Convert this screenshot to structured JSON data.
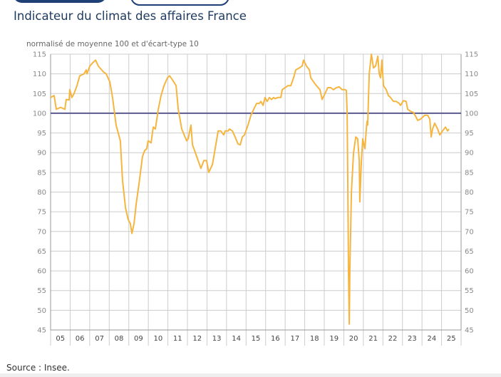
{
  "title": "Indicateur du climat des affaires France",
  "source": "Source : Insee.",
  "chart_data": {
    "type": "line",
    "subtitle": "normalisé de moyenne 100 et d'écart-type 10",
    "xlim": [
      2005,
      2026
    ],
    "ylim": [
      45,
      115
    ],
    "yticks": [
      45,
      50,
      55,
      60,
      65,
      70,
      75,
      80,
      85,
      90,
      95,
      100,
      105,
      110,
      115
    ],
    "xtick_labels": [
      "05",
      "06",
      "07",
      "08",
      "09",
      "10",
      "11",
      "12",
      "13",
      "14",
      "15",
      "16",
      "17",
      "18",
      "19",
      "20",
      "21",
      "22",
      "23",
      "24",
      "25"
    ],
    "reference_line": 100,
    "grid": true,
    "colors": {
      "series": "#f5b53f",
      "reference": "#5b5a8e",
      "grid": "#cccccc"
    },
    "series": [
      {
        "points": [
          [
            2005.0,
            104
          ],
          [
            2005.18,
            104.5
          ],
          [
            2005.29,
            101
          ],
          [
            2005.51,
            101.5
          ],
          [
            2005.73,
            101
          ],
          [
            2005.8,
            103.5
          ],
          [
            2005.95,
            103.4
          ],
          [
            2005.98,
            106
          ],
          [
            2006.09,
            104
          ],
          [
            2006.2,
            105
          ],
          [
            2006.35,
            107
          ],
          [
            2006.49,
            109.5
          ],
          [
            2006.71,
            110
          ],
          [
            2006.82,
            111
          ],
          [
            2006.86,
            110
          ],
          [
            2007.01,
            112
          ],
          [
            2007.19,
            113
          ],
          [
            2007.3,
            113.5
          ],
          [
            2007.44,
            112
          ],
          [
            2007.7,
            110.5
          ],
          [
            2007.84,
            110
          ],
          [
            2008.03,
            108
          ],
          [
            2008.17,
            104
          ],
          [
            2008.35,
            97
          ],
          [
            2008.46,
            95
          ],
          [
            2008.57,
            93
          ],
          [
            2008.68,
            83
          ],
          [
            2008.83,
            76
          ],
          [
            2008.97,
            73
          ],
          [
            2009.08,
            72
          ],
          [
            2009.16,
            69.5
          ],
          [
            2009.27,
            72
          ],
          [
            2009.38,
            77
          ],
          [
            2009.52,
            82
          ],
          [
            2009.7,
            89
          ],
          [
            2009.81,
            90.5
          ],
          [
            2009.92,
            91
          ],
          [
            2009.99,
            93
          ],
          [
            2010.14,
            92.5
          ],
          [
            2010.25,
            96.5
          ],
          [
            2010.36,
            96
          ],
          [
            2010.51,
            101
          ],
          [
            2010.65,
            104.5
          ],
          [
            2010.8,
            107
          ],
          [
            2010.98,
            109
          ],
          [
            2011.09,
            109.5
          ],
          [
            2011.23,
            108.5
          ],
          [
            2011.42,
            107
          ],
          [
            2011.53,
            101
          ],
          [
            2011.71,
            96
          ],
          [
            2011.96,
            93
          ],
          [
            2012.04,
            93.5
          ],
          [
            2012.18,
            97
          ],
          [
            2012.26,
            92
          ],
          [
            2012.44,
            89.5
          ],
          [
            2012.62,
            87
          ],
          [
            2012.69,
            86
          ],
          [
            2012.84,
            88
          ],
          [
            2012.98,
            88
          ],
          [
            2013.09,
            85
          ],
          [
            2013.28,
            87
          ],
          [
            2013.42,
            91
          ],
          [
            2013.57,
            95.5
          ],
          [
            2013.71,
            95.5
          ],
          [
            2013.86,
            94.5
          ],
          [
            2013.93,
            95.5
          ],
          [
            2014.08,
            95.5
          ],
          [
            2014.15,
            96
          ],
          [
            2014.3,
            95.5
          ],
          [
            2014.44,
            94
          ],
          [
            2014.59,
            92.2
          ],
          [
            2014.7,
            92
          ],
          [
            2014.81,
            94
          ],
          [
            2014.92,
            94.5
          ],
          [
            2015.1,
            97
          ],
          [
            2015.25,
            99.5
          ],
          [
            2015.39,
            101
          ],
          [
            2015.54,
            102.5
          ],
          [
            2015.68,
            102.5
          ],
          [
            2015.76,
            103
          ],
          [
            2015.87,
            102
          ],
          [
            2015.97,
            104
          ],
          [
            2016.08,
            103
          ],
          [
            2016.19,
            104
          ],
          [
            2016.3,
            103.5
          ],
          [
            2016.41,
            104
          ],
          [
            2016.48,
            103.7
          ],
          [
            2016.63,
            104
          ],
          [
            2016.78,
            104
          ],
          [
            2016.85,
            106
          ],
          [
            2017.0,
            106.5
          ],
          [
            2017.14,
            107
          ],
          [
            2017.29,
            107
          ],
          [
            2017.43,
            109
          ],
          [
            2017.54,
            111
          ],
          [
            2017.72,
            111.5
          ],
          [
            2017.87,
            112
          ],
          [
            2017.94,
            113.5
          ],
          [
            2018.09,
            112
          ],
          [
            2018.24,
            111
          ],
          [
            2018.31,
            109
          ],
          [
            2018.45,
            108
          ],
          [
            2018.6,
            107
          ],
          [
            2018.78,
            106
          ],
          [
            2018.89,
            103.5
          ],
          [
            2019.04,
            105
          ],
          [
            2019.18,
            106.5
          ],
          [
            2019.33,
            106.5
          ],
          [
            2019.47,
            106
          ],
          [
            2019.62,
            106.5
          ],
          [
            2019.77,
            106.7
          ],
          [
            2019.91,
            106
          ],
          [
            2020.06,
            106
          ],
          [
            2020.13,
            105.8
          ],
          [
            2020.17,
            100
          ],
          [
            2020.2,
            85
          ],
          [
            2020.24,
            60
          ],
          [
            2020.28,
            46.5
          ],
          [
            2020.31,
            60
          ],
          [
            2020.39,
            80
          ],
          [
            2020.5,
            90
          ],
          [
            2020.61,
            94
          ],
          [
            2020.71,
            93.5
          ],
          [
            2020.79,
            88
          ],
          [
            2020.82,
            77.5
          ],
          [
            2020.9,
            88
          ],
          [
            2020.97,
            93.5
          ],
          [
            2021.08,
            91
          ],
          [
            2021.15,
            96
          ],
          [
            2021.19,
            98
          ],
          [
            2021.22,
            97
          ],
          [
            2021.3,
            110
          ],
          [
            2021.41,
            115
          ],
          [
            2021.52,
            111.5
          ],
          [
            2021.63,
            112
          ],
          [
            2021.74,
            114.5
          ],
          [
            2021.81,
            110
          ],
          [
            2021.88,
            109
          ],
          [
            2021.95,
            113.5
          ],
          [
            2022.03,
            107
          ],
          [
            2022.17,
            106
          ],
          [
            2022.28,
            104.5
          ],
          [
            2022.39,
            104
          ],
          [
            2022.54,
            103
          ],
          [
            2022.68,
            103
          ],
          [
            2022.83,
            102.5
          ],
          [
            2022.9,
            102
          ],
          [
            2023.05,
            103.2
          ],
          [
            2023.19,
            103
          ],
          [
            2023.27,
            101
          ],
          [
            2023.41,
            100.5
          ],
          [
            2023.56,
            100.2
          ],
          [
            2023.7,
            99
          ],
          [
            2023.78,
            98.2
          ],
          [
            2023.92,
            98.5
          ],
          [
            2024.03,
            99
          ],
          [
            2024.14,
            99.5
          ],
          [
            2024.29,
            99.5
          ],
          [
            2024.4,
            98.5
          ],
          [
            2024.47,
            94
          ],
          [
            2024.54,
            96
          ],
          [
            2024.65,
            97.5
          ],
          [
            2024.8,
            96
          ],
          [
            2024.91,
            94.5
          ],
          [
            2025.05,
            95.5
          ],
          [
            2025.2,
            96.5
          ],
          [
            2025.31,
            95.5
          ],
          [
            2025.38,
            96
          ]
        ]
      }
    ]
  }
}
